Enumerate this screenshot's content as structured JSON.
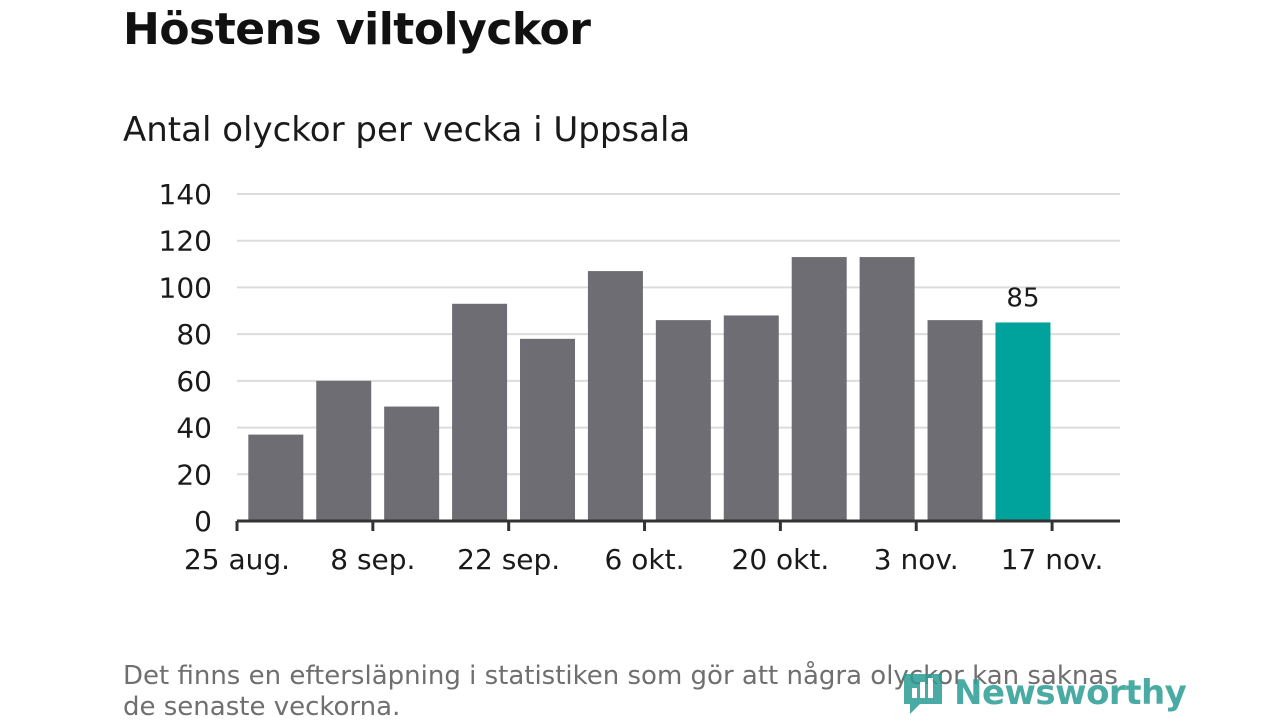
{
  "title": "Höstens viltolyckor",
  "subtitle": "Antal olyckor per vecka i Uppsala",
  "footnote": "Det finns en eftersläpning i statistiken som gör att några olyckor kan saknas de senaste veckorna.",
  "logo": {
    "text": "Newsworthy",
    "icon": "newsworthy-logo-icon"
  },
  "colors": {
    "bar": "#6e6d73",
    "highlight": "#00a39b",
    "grid": "#dcdcdc",
    "axis": "#333333"
  },
  "chart_data": {
    "type": "bar",
    "title": "Antal olyckor per vecka i Uppsala",
    "xlabel": "",
    "ylabel": "",
    "ylim": [
      0,
      140
    ],
    "yticks": [
      0,
      20,
      40,
      60,
      80,
      100,
      120,
      140
    ],
    "xlim": [
      "2024-08-25",
      "2024-11-24"
    ],
    "xtick_labels": [
      "25 aug.",
      "8 sep.",
      "22 sep.",
      "6 okt.",
      "20 okt.",
      "3 nov.",
      "17 nov."
    ],
    "xtick_dates": [
      "2024-08-25",
      "2024-09-08",
      "2024-09-22",
      "2024-10-06",
      "2024-10-20",
      "2024-11-03",
      "2024-11-17"
    ],
    "x": [
      "2024-08-26",
      "2024-09-02",
      "2024-09-09",
      "2024-09-16",
      "2024-09-23",
      "2024-09-30",
      "2024-10-07",
      "2024-10-14",
      "2024-10-21",
      "2024-10-28",
      "2024-11-04",
      "2024-11-11"
    ],
    "values": [
      37,
      60,
      49,
      93,
      78,
      107,
      86,
      88,
      113,
      113,
      86,
      85
    ],
    "highlight_index": 11,
    "data_labels": {
      "11": "85"
    },
    "grid": true
  }
}
